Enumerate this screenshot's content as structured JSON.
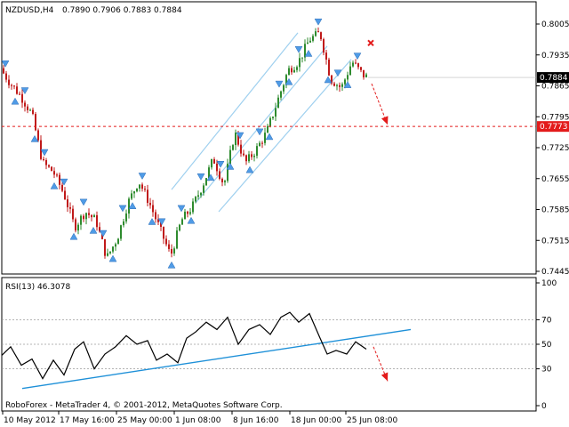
{
  "chart_data": [
    {
      "type": "candlestick",
      "symbol_label": "NZDUSD,H4",
      "ohlc_label": "0.7890 0.7906 0.7883 0.7884",
      "y_ticks": [
        "0.8005",
        "0.7935",
        "0.7865",
        "0.7795",
        "0.7725",
        "0.7655",
        "0.7585",
        "0.7515",
        "0.7445"
      ],
      "ylim": [
        0.7445,
        0.8005
      ],
      "price_tag": "0.7884",
      "level_tag": "0.7773",
      "level_value": 0.7773,
      "colors": {
        "bull": "#2e8b2e",
        "bear": "#c01a1a",
        "arrow": "#4f9be6",
        "channel": "#9fd0ef",
        "level": "#e31b1b"
      },
      "close_path": [
        [
          0,
          0.7905
        ],
        [
          12,
          0.787
        ],
        [
          24,
          0.784
        ],
        [
          36,
          0.78
        ],
        [
          48,
          0.769
        ],
        [
          60,
          0.767
        ],
        [
          72,
          0.762
        ],
        [
          84,
          0.7545
        ],
        [
          96,
          0.758
        ],
        [
          108,
          0.756
        ],
        [
          120,
          0.7475
        ],
        [
          132,
          0.752
        ],
        [
          144,
          0.76
        ],
        [
          156,
          0.765
        ],
        [
          168,
          0.76
        ],
        [
          180,
          0.754
        ],
        [
          192,
          0.748
        ],
        [
          204,
          0.756
        ],
        [
          216,
          0.759
        ],
        [
          228,
          0.764
        ],
        [
          240,
          0.77
        ],
        [
          252,
          0.764
        ],
        [
          264,
          0.776
        ],
        [
          276,
          0.769
        ],
        [
          288,
          0.772
        ],
        [
          300,
          0.776
        ],
        [
          312,
          0.783
        ],
        [
          324,
          0.79
        ],
        [
          336,
          0.792
        ],
        [
          348,
          0.797
        ],
        [
          360,
          0.7985
        ],
        [
          372,
          0.788
        ],
        [
          384,
          0.786
        ],
        [
          396,
          0.792
        ],
        [
          408,
          0.789
        ],
        [
          414,
          0.7884
        ]
      ],
      "forecast": {
        "from": [
          418,
          0.787
        ],
        "to": [
          436,
          0.7773
        ]
      },
      "forecast_marker": [
        417,
        0.7962
      ]
    },
    {
      "type": "line",
      "indicator_label": "RSI(13) 46.3078",
      "y_ticks": [
        "100",
        "70",
        "50",
        "30",
        "0"
      ],
      "ylim": [
        0,
        100
      ],
      "levels": [
        70,
        50,
        30
      ],
      "rsi_path": [
        [
          2,
          41
        ],
        [
          12,
          48
        ],
        [
          24,
          33
        ],
        [
          36,
          38
        ],
        [
          48,
          22
        ],
        [
          60,
          37
        ],
        [
          72,
          25
        ],
        [
          84,
          46
        ],
        [
          94,
          52
        ],
        [
          106,
          30
        ],
        [
          118,
          42
        ],
        [
          130,
          48
        ],
        [
          142,
          57
        ],
        [
          154,
          50
        ],
        [
          166,
          53
        ],
        [
          176,
          37
        ],
        [
          188,
          42
        ],
        [
          200,
          35
        ],
        [
          210,
          55
        ],
        [
          220,
          60
        ],
        [
          232,
          68
        ],
        [
          244,
          62
        ],
        [
          256,
          72
        ],
        [
          268,
          50
        ],
        [
          280,
          62
        ],
        [
          292,
          66
        ],
        [
          304,
          58
        ],
        [
          316,
          72
        ],
        [
          326,
          76
        ],
        [
          336,
          68
        ],
        [
          348,
          75
        ],
        [
          360,
          55
        ],
        [
          368,
          42
        ],
        [
          378,
          45
        ],
        [
          390,
          42
        ],
        [
          400,
          52
        ],
        [
          412,
          46
        ]
      ],
      "trendline": {
        "from": [
          25,
          14
        ],
        "to": [
          462,
          62
        ]
      },
      "forecast": {
        "from": [
          420,
          48
        ],
        "to": [
          436,
          20
        ]
      },
      "x_ticks": [
        "10 May 2012",
        "17 May 16:00",
        "25 May 00:00",
        "1 Jun 08:00",
        "8 Jun 16:00",
        "18 Jun 00:00",
        "25 Jun 08:00"
      ],
      "x_tick_pos": [
        3,
        66,
        131,
        196,
        261,
        326,
        389
      ]
    }
  ],
  "copyright": "RoboForex - MetaTrader 4, © 2001-2012, MetaQuotes Software Corp."
}
